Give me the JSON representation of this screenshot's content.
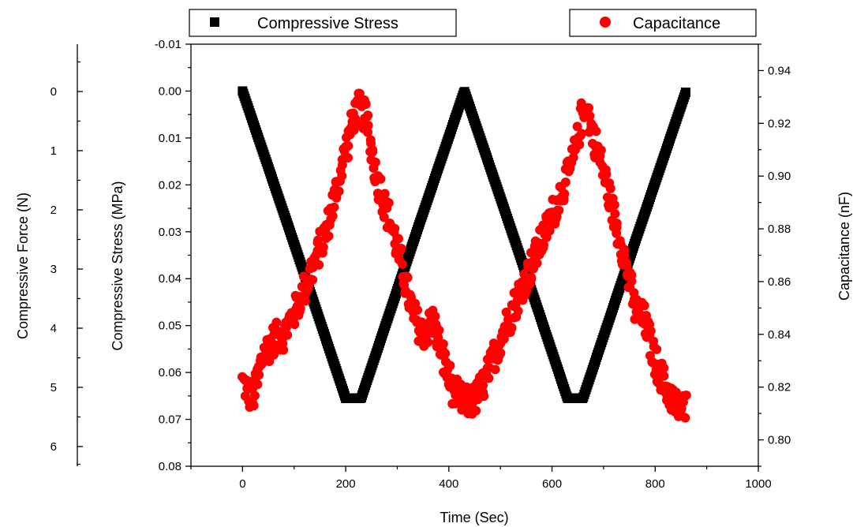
{
  "chart_data": {
    "type": "scatter",
    "x_axis": {
      "label": "Time (Sec)",
      "range": [
        -100,
        1000
      ],
      "ticks": [
        0,
        200,
        400,
        600,
        800,
        1000
      ]
    },
    "y_axis_stress": {
      "label": "Compressive Stress (MPa)",
      "range": [
        -0.01,
        0.08
      ],
      "inverted": true,
      "ticks": [
        "-0.01",
        "0.00",
        "0.01",
        "0.02",
        "0.03",
        "0.04",
        "0.05",
        "0.06",
        "0.07",
        "0.08"
      ]
    },
    "y_axis_force": {
      "label": "Compressive Force (N)",
      "ticks": [
        "0",
        "1",
        "2",
        "3",
        "4",
        "5",
        "6"
      ]
    },
    "y_axis_capacitance": {
      "label": "Capacitance (nF)",
      "range": [
        0.79,
        0.95
      ],
      "ticks": [
        "0.80",
        "0.82",
        "0.84",
        "0.86",
        "0.88",
        "0.90",
        "0.92",
        "0.94"
      ]
    },
    "legend": {
      "placement": "top, outside plot"
    },
    "series": [
      {
        "name": "Compressive Stress",
        "marker": "square",
        "color": "#000000",
        "axis": "stress",
        "x": [
          0,
          100,
          200,
          230,
          330,
          430,
          530,
          630,
          660,
          760,
          860
        ],
        "values": [
          0.0,
          0.0325,
          0.0655,
          0.0655,
          0.0325,
          0.0,
          0.0325,
          0.0655,
          0.0655,
          0.0325,
          0.0
        ]
      },
      {
        "name": "Capacitance",
        "marker": "circle",
        "color": "#ff0000",
        "axis": "capacitance",
        "x": [
          0,
          20,
          40,
          60,
          80,
          100,
          130,
          160,
          180,
          200,
          215,
          225,
          240,
          260,
          290,
          310,
          330,
          350,
          370,
          390,
          410,
          430,
          450,
          470,
          500,
          530,
          560,
          590,
          620,
          640,
          655,
          665,
          680,
          700,
          720,
          740,
          760,
          780,
          800,
          820,
          840,
          860
        ],
        "values": [
          0.822,
          0.815,
          0.832,
          0.838,
          0.84,
          0.848,
          0.862,
          0.878,
          0.893,
          0.91,
          0.922,
          0.926,
          0.922,
          0.9,
          0.88,
          0.865,
          0.848,
          0.84,
          0.845,
          0.83,
          0.818,
          0.814,
          0.815,
          0.822,
          0.838,
          0.852,
          0.866,
          0.88,
          0.895,
          0.905,
          0.92,
          0.928,
          0.915,
          0.902,
          0.885,
          0.87,
          0.85,
          0.845,
          0.83,
          0.82,
          0.813,
          0.812
        ]
      }
    ]
  }
}
